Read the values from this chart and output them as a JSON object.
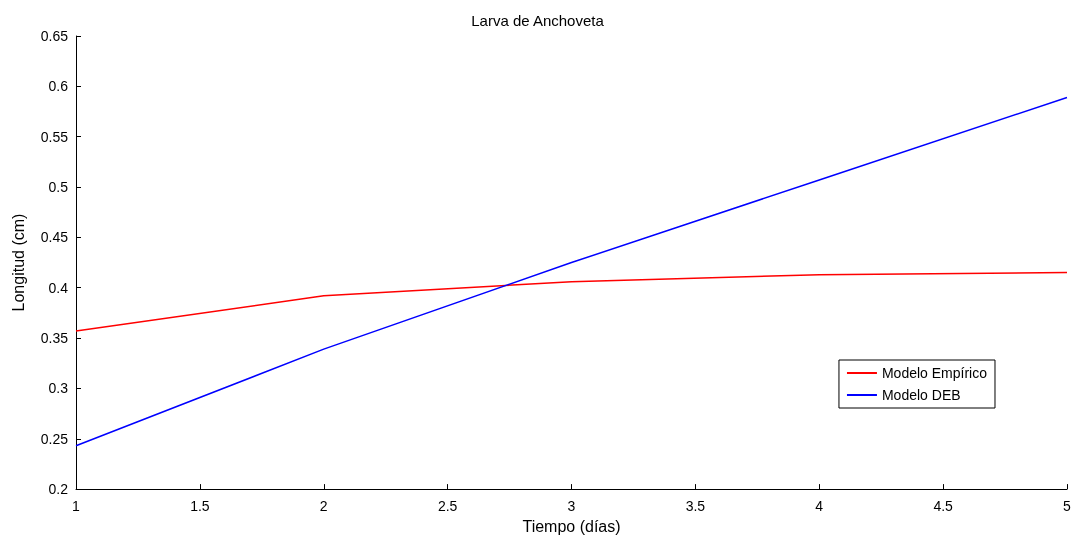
{
  "chart_data": {
    "type": "line",
    "title": "Larva de Anchoveta",
    "xlabel": "Tiempo (días)",
    "ylabel": "Longitud (cm)",
    "x": [
      1,
      2,
      3,
      4,
      5
    ],
    "series": [
      {
        "name": "Modelo Empírico",
        "color": "#ff0000",
        "values": [
          0.357,
          0.392,
          0.406,
          0.413,
          0.415
        ]
      },
      {
        "name": "Modelo DEB",
        "color": "#0000ff",
        "values": [
          0.243,
          0.339,
          0.425,
          0.507,
          0.589
        ]
      }
    ],
    "xlim": [
      1,
      5
    ],
    "xticks": [
      1,
      1.5,
      2,
      2.5,
      3,
      3.5,
      4,
      4.5,
      5
    ],
    "ylim": [
      0.2,
      0.65
    ],
    "yticks": [
      0.2,
      0.25,
      0.3,
      0.35,
      0.4,
      0.45,
      0.5,
      0.55,
      0.6,
      0.65
    ],
    "grid": false,
    "legend": "right",
    "marker": "none",
    "line_style": "solid"
  }
}
